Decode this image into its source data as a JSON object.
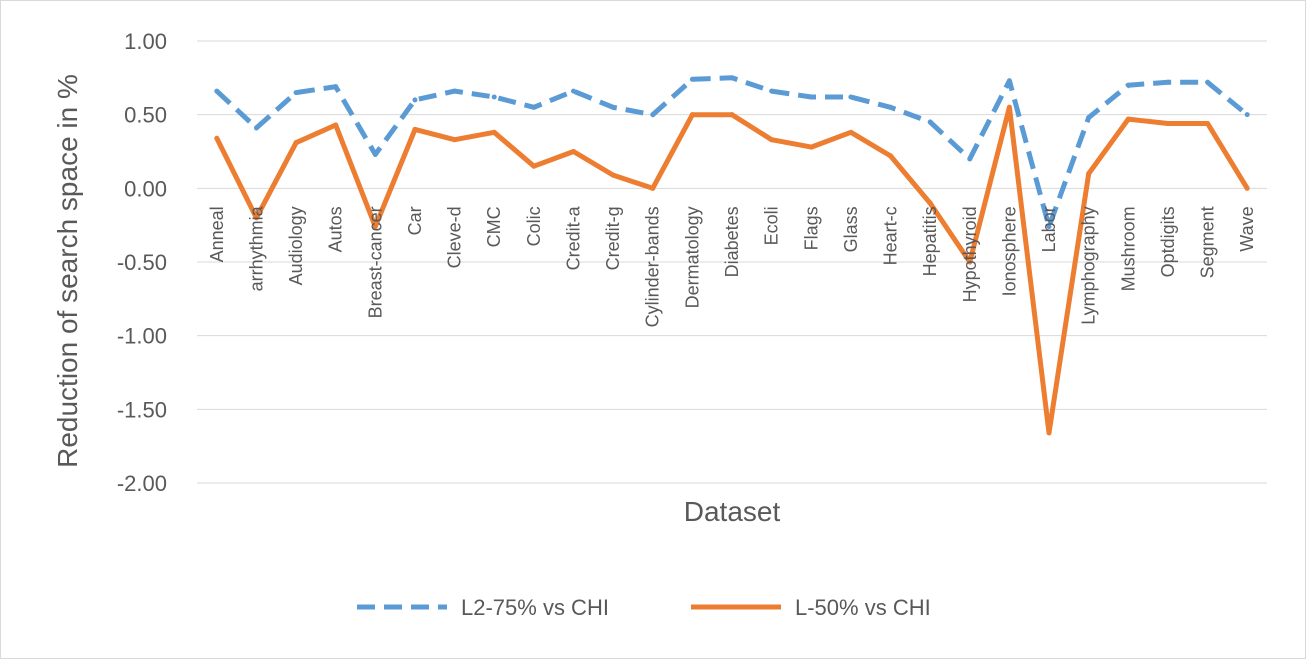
{
  "chart_data": {
    "type": "line",
    "title": "",
    "xlabel": "Dataset",
    "ylabel": "Reduction of search space  in %",
    "ylim": [
      -2.0,
      1.0
    ],
    "yticks": [
      1.0,
      0.5,
      0.0,
      -0.5,
      -1.0,
      -1.5,
      -2.0
    ],
    "ytick_labels": [
      "1.00",
      "0.50",
      "0.00",
      "-0.50",
      "-1.00",
      "-1.50",
      "-2.00"
    ],
    "grid": "horizontal",
    "legend_position": "bottom",
    "categories": [
      "Anneal",
      "arrhythmia",
      "Audiology",
      "Autos",
      "Breast-cancer",
      "Car",
      "Cleve-d",
      "CMC",
      "Colic",
      "Credit-a",
      "Credit-g",
      "Cylinder-bands",
      "Dermatology",
      "Diabetes",
      "Ecoli",
      "Flags",
      "Glass",
      "Heart-c",
      "Hepatitis",
      "Hypothyroid",
      "Ionosphere",
      "Labor",
      "Lymphography",
      "Mushroom",
      "Optdigits",
      "Segment",
      "Wave"
    ],
    "series": [
      {
        "name": "L2-75% vs CHI",
        "color": "#5B9BD5",
        "dash": "dashed",
        "values": [
          0.66,
          0.41,
          0.65,
          0.69,
          0.23,
          0.6,
          0.66,
          0.62,
          0.55,
          0.66,
          0.55,
          0.5,
          0.74,
          0.75,
          0.66,
          0.62,
          0.62,
          0.55,
          0.45,
          0.2,
          0.73,
          -0.26,
          0.48,
          0.7,
          0.72,
          0.72,
          0.5
        ]
      },
      {
        "name": "L-50% vs CHI",
        "color": "#ED7D31",
        "dash": "solid",
        "values": [
          0.34,
          -0.2,
          0.31,
          0.43,
          -0.26,
          0.4,
          0.33,
          0.38,
          0.15,
          0.25,
          0.09,
          0.0,
          0.5,
          0.5,
          0.33,
          0.28,
          0.38,
          0.22,
          -0.1,
          -0.5,
          0.55,
          -1.66,
          0.1,
          0.47,
          0.44,
          0.44,
          0.0
        ]
      }
    ]
  }
}
